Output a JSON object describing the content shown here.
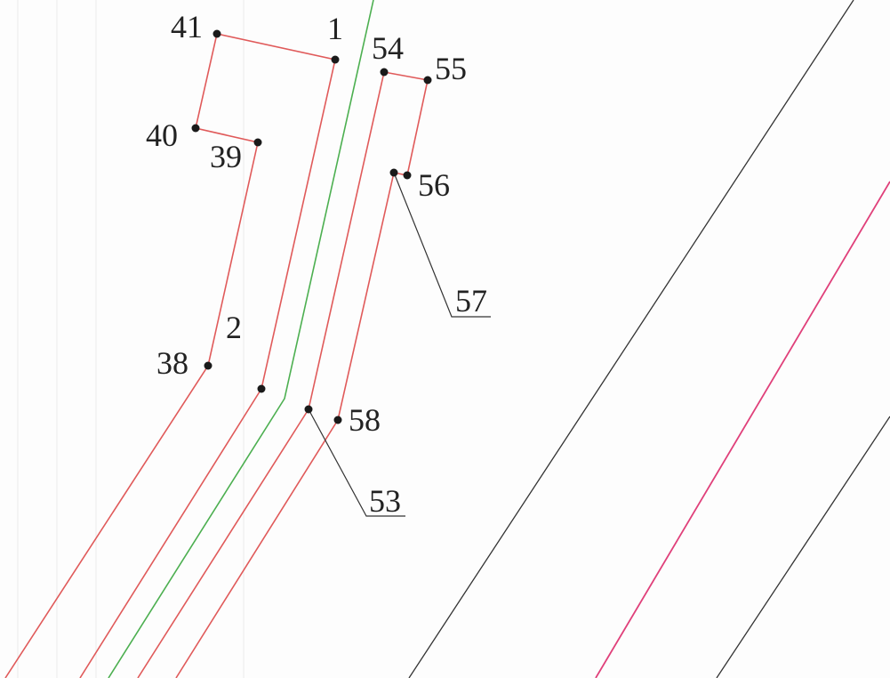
{
  "colors": {
    "background": "#fdfdfd",
    "parcel_boundary": "#e05a5a",
    "axis_line": "#4caf50",
    "black_line": "#333333",
    "magenta_line": "#e0407a",
    "grid_line": "#ececec"
  },
  "points": {
    "p1": "1",
    "p2": "2",
    "p38": "38",
    "p39": "39",
    "p40": "40",
    "p41": "41",
    "p53": "53",
    "p54": "54",
    "p55": "55",
    "p56": "56",
    "p57": "57",
    "p58": "58"
  }
}
